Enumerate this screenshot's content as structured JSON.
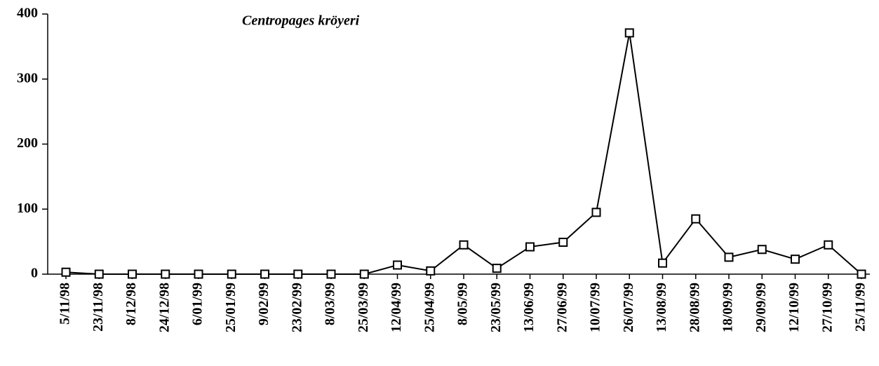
{
  "chart_data": {
    "type": "line",
    "title": "Centropages kröyeri",
    "categories": [
      "5/11/98",
      "23/11/98",
      "8/12/98",
      "24/12/98",
      "6/01/99",
      "25/01/99",
      "9/02/99",
      "23/02/99",
      "8/03/99",
      "25/03/99",
      "12/04/99",
      "25/04/99",
      "8/05/99",
      "23/05/99",
      "13/06/99",
      "27/06/99",
      "10/07/99",
      "26/07/99",
      "13/08/99",
      "28/08/99",
      "18/09/99",
      "29/09/99",
      "12/10/99",
      "27/10/99",
      "25/11/99"
    ],
    "values": [
      3,
      0,
      0,
      0,
      0,
      0,
      0,
      0,
      0,
      0,
      14,
      5,
      45,
      9,
      42,
      49,
      95,
      371,
      17,
      85,
      26,
      38,
      23,
      45,
      0
    ],
    "color": "#000000",
    "ylim": [
      0,
      400
    ],
    "yticks": [
      0,
      100,
      200,
      300,
      400
    ],
    "grid": false
  }
}
